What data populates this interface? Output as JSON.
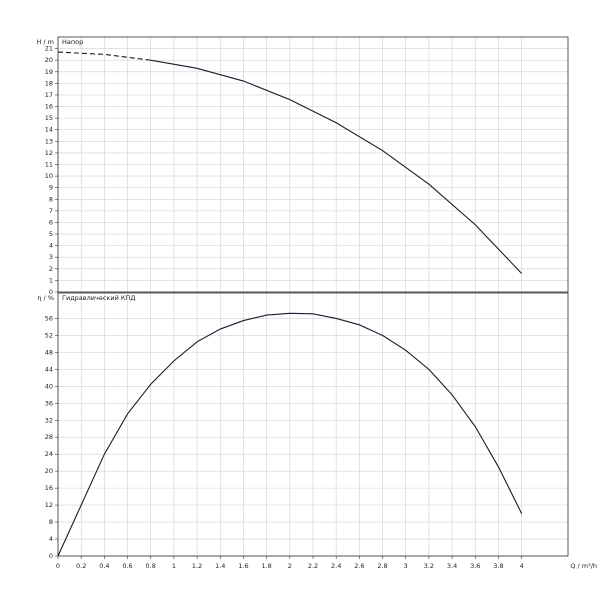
{
  "chart_data": [
    {
      "type": "line",
      "title": "Напор",
      "y_label": "H / m",
      "xlim": [
        0,
        4.4
      ],
      "xticks": [
        0,
        0.2,
        0.4,
        0.6,
        0.8,
        1,
        1.2,
        1.4,
        1.6,
        1.8,
        2,
        2.2,
        2.4,
        2.6,
        2.8,
        3,
        3.2,
        3.4,
        3.6,
        3.8,
        4
      ],
      "ylim": [
        0,
        22
      ],
      "yticks": [
        0,
        1,
        2,
        3,
        4,
        5,
        6,
        7,
        8,
        9,
        10,
        11,
        12,
        13,
        14,
        15,
        16,
        17,
        18,
        19,
        20,
        21
      ],
      "grid": true,
      "color": "#1a1a2e",
      "segments": [
        {
          "style": "dashed",
          "x": [
            0,
            0.4,
            0.8
          ],
          "values": [
            20.7,
            20.5,
            20.0
          ]
        },
        {
          "style": "solid",
          "x": [
            0.8,
            1.2,
            1.6,
            2.0,
            2.4,
            2.8,
            3.2,
            3.6,
            4.0
          ],
          "values": [
            20.0,
            19.3,
            18.2,
            16.6,
            14.6,
            12.2,
            9.3,
            5.8,
            1.6
          ]
        }
      ]
    },
    {
      "type": "line",
      "title": "Гидравлический КПД",
      "y_label": "η / %",
      "x_label": "Q / m³/h",
      "xlim": [
        0,
        4.4
      ],
      "xticks": [
        0,
        0.2,
        0.4,
        0.6,
        0.8,
        1,
        1.2,
        1.4,
        1.6,
        1.8,
        2,
        2.2,
        2.4,
        2.6,
        2.8,
        3,
        3.2,
        3.4,
        3.6,
        3.8,
        4
      ],
      "ylim": [
        0,
        62
      ],
      "yticks": [
        0,
        4,
        8,
        12,
        16,
        20,
        24,
        28,
        32,
        36,
        40,
        44,
        48,
        52,
        56
      ],
      "grid": true,
      "color": "#1a1a2e",
      "segments": [
        {
          "style": "solid",
          "x": [
            0,
            0.2,
            0.4,
            0.6,
            0.8,
            1.0,
            1.2,
            1.4,
            1.6,
            1.8,
            2.0,
            2.2,
            2.4,
            2.6,
            2.8,
            3.0,
            3.2,
            3.4,
            3.6,
            3.8,
            4.0
          ],
          "values": [
            0,
            12,
            24,
            33.5,
            40.5,
            46,
            50.5,
            53.5,
            55.5,
            56.8,
            57.2,
            57.1,
            56,
            54.5,
            52,
            48.5,
            44,
            38,
            30.5,
            21,
            10
          ]
        }
      ]
    }
  ]
}
